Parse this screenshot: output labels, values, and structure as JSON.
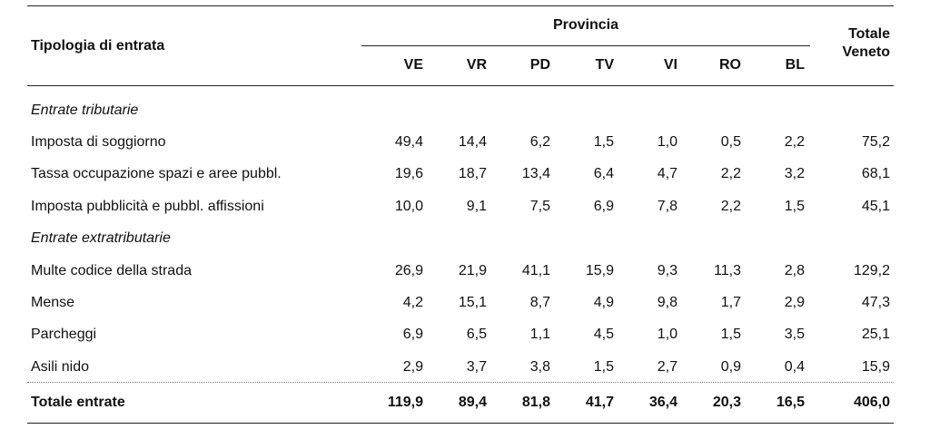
{
  "header": {
    "tipologia": "Tipologia di entrata",
    "provincia": "Provincia",
    "totale_line1": "Totale",
    "totale_line2": "Veneto",
    "columns": [
      "VE",
      "VR",
      "PD",
      "TV",
      "VI",
      "RO",
      "BL"
    ]
  },
  "rows": [
    {
      "label": "Entrate tributarie",
      "section": true
    },
    {
      "label": "Imposta di soggiorno",
      "values": [
        "49,4",
        "14,4",
        "6,2",
        "1,5",
        "1,0",
        "0,5",
        "2,2",
        "75,2"
      ]
    },
    {
      "label": "Tassa occupazione spazi e aree pubbl.",
      "values": [
        "19,6",
        "18,7",
        "13,4",
        "6,4",
        "4,7",
        "2,2",
        "3,2",
        "68,1"
      ]
    },
    {
      "label": "Imposta pubblicità e pubbl. affissioni",
      "values": [
        "10,0",
        "9,1",
        "7,5",
        "6,9",
        "7,8",
        "2,2",
        "1,5",
        "45,1"
      ]
    },
    {
      "label": "Entrate extratributarie",
      "section": true
    },
    {
      "label": "Multe codice della strada",
      "values": [
        "26,9",
        "21,9",
        "41,1",
        "15,9",
        "9,3",
        "11,3",
        "2,8",
        "129,2"
      ]
    },
    {
      "label": "Mense",
      "values": [
        "4,2",
        "15,1",
        "8,7",
        "4,9",
        "9,8",
        "1,7",
        "2,9",
        "47,3"
      ]
    },
    {
      "label": "Parcheggi",
      "values": [
        "6,9",
        "6,5",
        "1,1",
        "4,5",
        "1,0",
        "1,5",
        "3,5",
        "25,1"
      ]
    },
    {
      "label": "Asili nido",
      "values": [
        "2,9",
        "3,7",
        "3,8",
        "1,5",
        "2,7",
        "0,9",
        "0,4",
        "15,9"
      ]
    }
  ],
  "total": {
    "label": "Totale entrate",
    "values": [
      "119,9",
      "89,4",
      "81,8",
      "41,7",
      "36,4",
      "20,3",
      "16,5",
      "406,0"
    ]
  }
}
